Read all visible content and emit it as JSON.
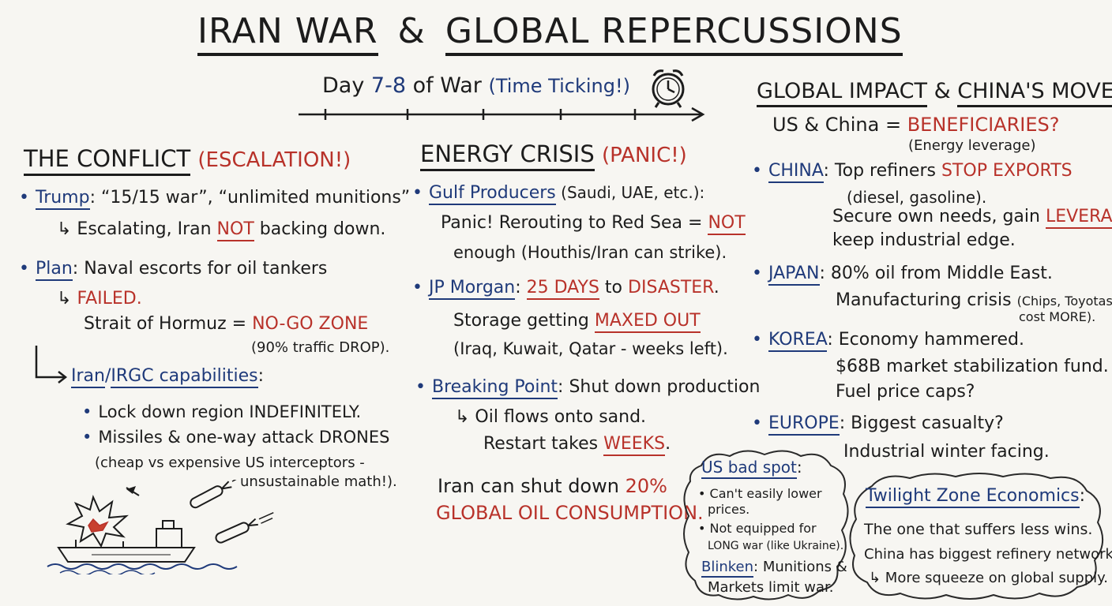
{
  "title": {
    "part1": "IRAN WAR",
    "amp": "&",
    "part2": "GLOBAL REPERCUSSIONS"
  },
  "timeline": {
    "day": "Day",
    "range": "7-8",
    "of_war": "of War",
    "note": "(Time Ticking!)",
    "icon": "alarm-clock-icon"
  },
  "conflict": {
    "heading": "THE CONFLICT",
    "tag": "(ESCALATION!)",
    "trump_name": "Trump",
    "trump_quote": ": “15/15 war”, “unlimited munitions”",
    "trump_sub_pre": "↳ Escalating, Iran ",
    "trump_sub_not": "NOT",
    "trump_sub_post": " backing down.",
    "plan_name": "Plan",
    "plan_text": ": Naval escorts for oil tankers",
    "plan_failed": "FAILED.",
    "hormuz_pre": "Strait of Hormuz = ",
    "hormuz_zone": "NO-GO ZONE",
    "hormuz_drop": "(90% traffic DROP).",
    "iran_name1": "Iran",
    "iran_slash": "/",
    "iran_name2": "IRGC capabilities",
    "iran_colon": ":",
    "iran_b1": "Lock down region INDEFINITELY.",
    "iran_b2": "Missiles & one-way attack DRONES",
    "iran_b3": "(cheap vs expensive US interceptors -",
    "iran_b4": "unsustainable math!)."
  },
  "energy": {
    "heading": "ENERGY CRISIS",
    "tag": "(PANIC!)",
    "gulf_name": "Gulf Producers",
    "gulf_text": " (Saudi, UAE, etc.):",
    "gulf_l2_pre": "Panic! Rerouting to Red Sea = ",
    "gulf_l2_not": "NOT",
    "gulf_l3": "enough (Houthis/Iran can strike).",
    "jpm_name": "JP Morgan",
    "jpm_colon": ": ",
    "jpm_days": "25 DAYS",
    "jpm_to": " to ",
    "jpm_disaster": "DISASTER",
    "jpm_dot": ".",
    "storage_pre": "Storage getting ",
    "storage_max": "MAXED OUT",
    "storage_l2": "(Iraq, Kuwait, Qatar - weeks left).",
    "bp_name": "Breaking Point",
    "bp_text": ": Shut down production",
    "bp_l2": "↳ Oil flows onto sand.",
    "bp_l3_pre": "Restart takes ",
    "bp_l3_weeks": "WEEKS",
    "bp_l3_dot": ".",
    "iran_l1_pre": "Iran can shut down ",
    "iran_l1_pct": "20%",
    "iran_l2": "GLOBAL OIL CONSUMPTION."
  },
  "global": {
    "heading1": "GLOBAL IMPACT",
    "amp": "&",
    "heading2": "CHINA'S MOVE",
    "ben_pre": "US & China = ",
    "ben": "BENEFICIARIES?",
    "ben_note": "(Energy leverage)",
    "china_name": "CHINA",
    "china_l1_pre": ": Top refiners ",
    "china_l1_stop": "STOP EXPORTS",
    "china_l2": "(diesel, gasoline).",
    "china_l3_pre": "Secure own needs, gain ",
    "china_l3_lev": "LEVERAGE",
    "china_l3_comma": ",",
    "china_l4": "keep industrial edge.",
    "japan_name": "JAPAN",
    "japan_l1": ": 80% oil from Middle East.",
    "japan_l2": "Manufacturing crisis",
    "japan_l2_note": "(Chips, Toyotas",
    "japan_l3_note": "cost MORE).",
    "korea_name": "KOREA",
    "korea_l1": ": Economy hammered.",
    "korea_l2": "$68B market stabilization fund.",
    "korea_l3": "Fuel price caps?",
    "europe_name": "EUROPE",
    "europe_l1": ": Biggest casualty?",
    "europe_l2": "Industrial winter facing."
  },
  "us_cloud": {
    "heading": "US bad spot",
    "colon": ":",
    "b1a": "• Can't easily lower",
    "b1b": "prices.",
    "b2a": "• Not equipped for",
    "b2b": "LONG war (like Ukraine).",
    "blinken": "Blinken",
    "blinken_text": ": Munitions &",
    "blinken_l2": "Markets limit war."
  },
  "twilight_cloud": {
    "heading": "Twilight Zone Economics",
    "colon": ":",
    "l1": "The one that suffers less wins.",
    "l2": "China has biggest refinery network",
    "l3": "↳ More squeeze on global supply."
  },
  "colors": {
    "ink": "#1c1c1c",
    "blue": "#1f3a7a",
    "red": "#b8322a",
    "board": "#f7f6f2"
  }
}
